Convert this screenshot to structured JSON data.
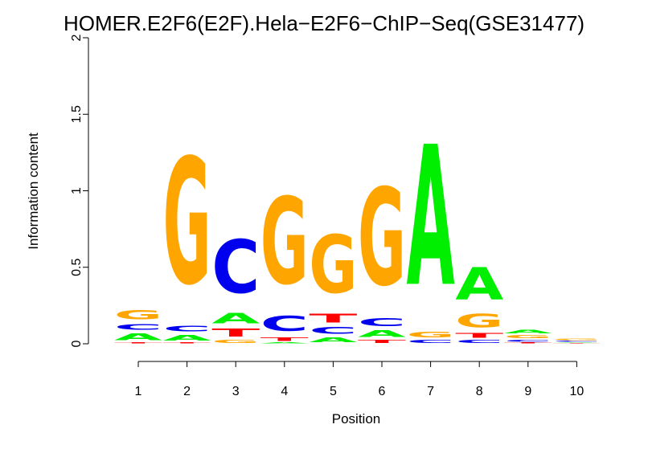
{
  "chart_data": {
    "type": "sequence-logo",
    "title": "HOMER.E2F6(E2F).Hela−E2F6−ChIP−Seq(GSE31477)",
    "xlabel": "Position",
    "ylabel": "Information content",
    "ylim": [
      0,
      2
    ],
    "y_ticks": [
      "0",
      "0.5",
      "1",
      "1.5",
      "2"
    ],
    "y_tick_values": [
      0,
      0.5,
      1,
      1.5,
      2
    ],
    "x_ticks": [
      "1",
      "2",
      "3",
      "4",
      "5",
      "6",
      "7",
      "8",
      "9",
      "10"
    ],
    "colors": {
      "A": "#00ee00",
      "C": "#0000ee",
      "G": "#ffa500",
      "T": "#ff0000"
    },
    "positions": [
      {
        "position": 1,
        "stack": [
          {
            "letter": "T",
            "height": 0.01
          },
          {
            "letter": "A",
            "height": 0.07
          },
          {
            "letter": "C",
            "height": 0.06
          },
          {
            "letter": "G",
            "height": 0.1
          }
        ]
      },
      {
        "position": 2,
        "stack": [
          {
            "letter": "T",
            "height": 0.01
          },
          {
            "letter": "A",
            "height": 0.06
          },
          {
            "letter": "C",
            "height": 0.06
          },
          {
            "letter": "G",
            "height": 1.32
          }
        ]
      },
      {
        "position": 3,
        "stack": [
          {
            "letter": "G",
            "height": 0.03
          },
          {
            "letter": "T",
            "height": 0.08
          },
          {
            "letter": "A",
            "height": 0.11
          },
          {
            "letter": "C",
            "height": 0.56
          }
        ]
      },
      {
        "position": 4,
        "stack": [
          {
            "letter": "A",
            "height": 0.01
          },
          {
            "letter": "T",
            "height": 0.04
          },
          {
            "letter": "C",
            "height": 0.16
          },
          {
            "letter": "G",
            "height": 0.91
          }
        ]
      },
      {
        "position": 5,
        "stack": [
          {
            "letter": "A",
            "height": 0.05
          },
          {
            "letter": "C",
            "height": 0.07
          },
          {
            "letter": "T",
            "height": 0.09
          },
          {
            "letter": "G",
            "height": 0.61
          }
        ]
      },
      {
        "position": 6,
        "stack": [
          {
            "letter": "T",
            "height": 0.03
          },
          {
            "letter": "A",
            "height": 0.07
          },
          {
            "letter": "C",
            "height": 0.08
          },
          {
            "letter": "G",
            "height": 1.02
          }
        ]
      },
      {
        "position": 7,
        "stack": [
          {
            "letter": "C",
            "height": 0.03
          },
          {
            "letter": "G",
            "height": 0.06
          },
          {
            "letter": "A",
            "height": 1.47
          }
        ]
      },
      {
        "position": 8,
        "stack": [
          {
            "letter": "C",
            "height": 0.03
          },
          {
            "letter": "T",
            "height": 0.05
          },
          {
            "letter": "G",
            "height": 0.14
          },
          {
            "letter": "A",
            "height": 0.34
          }
        ]
      },
      {
        "position": 9,
        "stack": [
          {
            "letter": "T",
            "height": 0.01
          },
          {
            "letter": "C",
            "height": 0.02
          },
          {
            "letter": "G",
            "height": 0.03
          },
          {
            "letter": "A",
            "height": 0.04
          }
        ]
      },
      {
        "position": 10,
        "stack": [
          {
            "letter": "T",
            "height": 0.005
          },
          {
            "letter": "A",
            "height": 0.005
          },
          {
            "letter": "C",
            "height": 0.01
          },
          {
            "letter": "G",
            "height": 0.015
          }
        ]
      }
    ]
  }
}
